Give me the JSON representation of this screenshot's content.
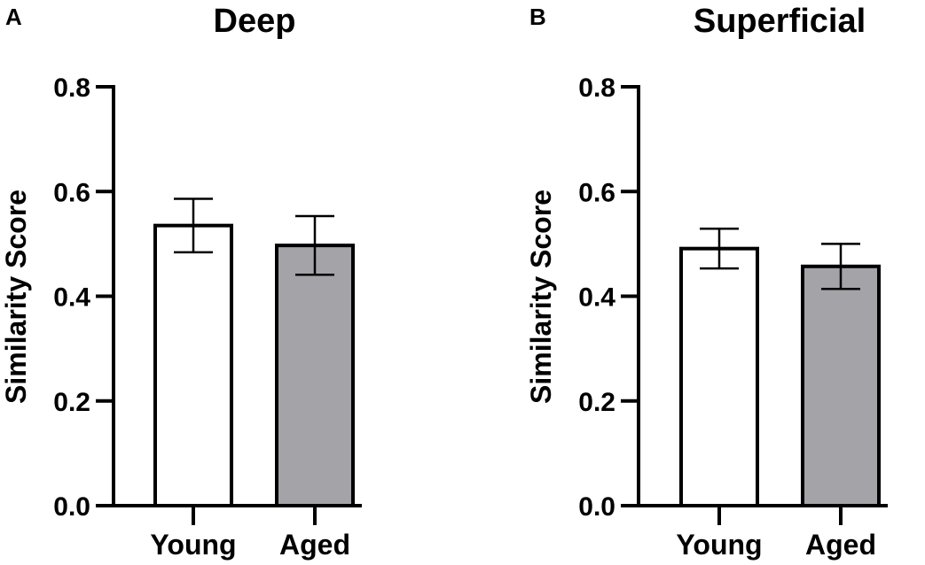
{
  "chart_data": [
    {
      "panel": "A",
      "type": "bar",
      "title": "Deep",
      "ylabel": "Similarity Score",
      "xlabel": "",
      "ylim": [
        0,
        0.8
      ],
      "yticks": [
        "0.0",
        "0.2",
        "0.4",
        "0.6",
        "0.8"
      ],
      "categories": [
        "Young",
        "Aged"
      ],
      "values": [
        0.535,
        0.497
      ],
      "errors": [
        0.051,
        0.056
      ],
      "colors": [
        "#ffffff",
        "#a3a3a8"
      ]
    },
    {
      "panel": "B",
      "type": "bar",
      "title": "Superficial",
      "ylabel": "Similarity Score",
      "xlabel": "",
      "ylim": [
        0,
        0.8
      ],
      "yticks": [
        "0.0",
        "0.2",
        "0.4",
        "0.6",
        "0.8"
      ],
      "categories": [
        "Young",
        "Aged"
      ],
      "values": [
        0.491,
        0.457
      ],
      "errors": [
        0.038,
        0.043
      ],
      "colors": [
        "#ffffff",
        "#a3a3a8"
      ]
    }
  ]
}
